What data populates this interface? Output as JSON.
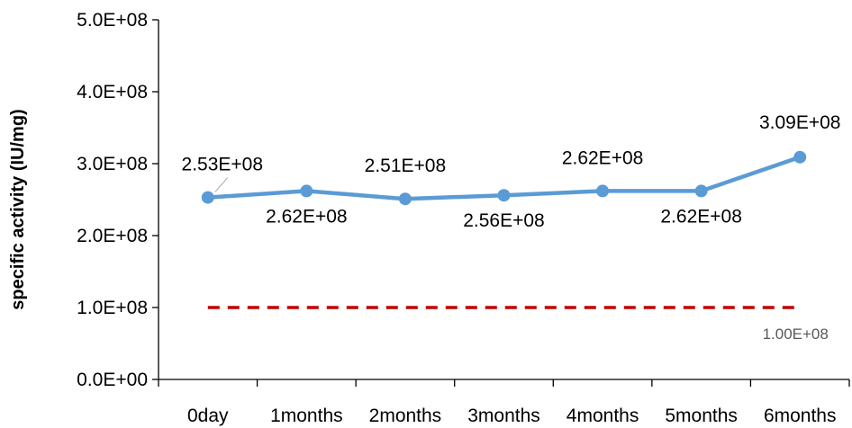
{
  "chart_data": {
    "type": "line",
    "ylabel": "specific activity (IU/mg)",
    "xlabel": "",
    "title": "",
    "categories": [
      "0day",
      "1months",
      "2months",
      "3months",
      "4months",
      "5months",
      "6months"
    ],
    "ylim": [
      0,
      500000000
    ],
    "yticks": [
      0,
      100000000,
      200000000,
      300000000,
      400000000,
      500000000
    ],
    "ytick_labels": [
      "0.0E+00",
      "1.0E+08",
      "2.0E+08",
      "3.0E+08",
      "4.0E+08",
      "5.0E+08"
    ],
    "grid": false,
    "legend": "none",
    "series": [
      {
        "values": [
          253000000,
          262000000,
          251000000,
          256000000,
          262000000,
          262000000,
          309000000
        ],
        "data_labels": [
          "2.53E+08",
          "2.62E+08",
          "2.51E+08",
          "2.56E+08",
          "2.62E+08",
          "2.62E+08",
          "3.09E+08"
        ],
        "color": "#5b9bd5"
      }
    ],
    "reference_line": {
      "value": 100000000,
      "label": "1.00E+08",
      "color": "#c00000",
      "style": "dashed"
    }
  }
}
